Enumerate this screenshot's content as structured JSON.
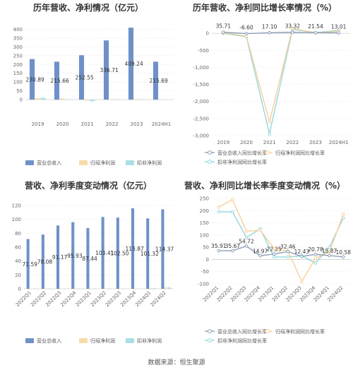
{
  "source": "数据来源：恒生聚源",
  "chart_data": [
    {
      "id": "annual-revenue",
      "type": "bar",
      "title": "历年营收、净利情况（亿元）",
      "categories": [
        "2019",
        "2020",
        "2021",
        "2022",
        "2023",
        "2024H1"
      ],
      "series": [
        {
          "name": "营业总收入",
          "color": "#6f91c7",
          "values": [
            230.89,
            215.66,
            252.55,
            336.71,
            409.24,
            215.69
          ]
        },
        {
          "name": "归母净利润",
          "color": "#f8dba9",
          "values": [
            8,
            7,
            -5,
            3,
            3,
            2
          ]
        },
        {
          "name": "扣非净利润",
          "color": "#a9dfe4",
          "values": [
            10,
            -1,
            -9,
            2,
            2,
            1
          ]
        }
      ],
      "data_labels": [
        "230.89",
        "215.66",
        "252.55",
        "336.71",
        "409.24",
        "215.69"
      ],
      "yticks": [
        "0",
        "50",
        "100",
        "150",
        "200",
        "250",
        "300",
        "350",
        "400"
      ],
      "ylim": [
        -100,
        430
      ]
    },
    {
      "id": "annual-growth",
      "type": "line",
      "title": "历年营收、净利同比增长率情况（%）",
      "categories": [
        "2019",
        "2020",
        "2021",
        "2022",
        "2023",
        "2024H1"
      ],
      "series": [
        {
          "name": "营业总收入同比增长率",
          "color": "#8a9fb8",
          "values": [
            35.71,
            -6.6,
            17.1,
            33.32,
            21.54,
            13.01
          ]
        },
        {
          "name": "归母净利润同比增长率",
          "color": "#f8cf9a",
          "values": [
            20,
            -80,
            -2600,
            150,
            10,
            60
          ]
        },
        {
          "name": "扣非净利润同比增长率",
          "color": "#93d7dc",
          "values": [
            0,
            -100,
            -2950,
            120,
            20,
            90
          ]
        }
      ],
      "data_labels": [
        "35.71",
        "-6.60",
        "17.10",
        "33.32",
        "21.54",
        "13.01"
      ],
      "yticks": [
        "0",
        "-500",
        "-1,000",
        "-1,500",
        "-2,000",
        "-2,500",
        "-3,000"
      ],
      "ylim": [
        -3000,
        150
      ]
    },
    {
      "id": "quarterly-revenue",
      "type": "bar",
      "title": "营收、净利季度变动情况（亿元）",
      "categories": [
        "2022Q1",
        "2022Q2",
        "2022Q3",
        "2022Q4",
        "2023Q1",
        "2023Q2",
        "2023Q3",
        "2023Q4",
        "2024Q1",
        "2024Q2"
      ],
      "series": [
        {
          "name": "营业总收入",
          "color": "#6f91c7",
          "values": [
            71.59,
            78.08,
            91.17,
            95.93,
            87.44,
            103.41,
            102.5,
            115.87,
            101.32,
            114.37
          ]
        },
        {
          "name": "归母净利润",
          "color": "#f8dba9",
          "values": [
            0.5,
            0.5,
            0.5,
            0.5,
            0.5,
            0.5,
            0.5,
            0.5,
            1,
            2
          ]
        },
        {
          "name": "扣非净利润",
          "color": "#a9dfe4",
          "values": [
            0.3,
            0.3,
            0.3,
            0.3,
            0.3,
            0.3,
            0.3,
            0.3,
            1,
            2
          ]
        }
      ],
      "data_labels": [
        "71.59",
        "78.08",
        "91.17",
        "95.93",
        "87.44",
        "103.41",
        "102.50",
        "115.87",
        "101.32",
        "114.37"
      ],
      "yticks": [
        "0",
        "20",
        "40",
        "60",
        "80",
        "100",
        "120"
      ],
      "ylim": [
        0,
        125
      ]
    },
    {
      "id": "quarterly-growth",
      "type": "line",
      "title": "营收、净利同比增长率季度变动情况（%）",
      "categories": [
        "2022Q1",
        "2022Q2",
        "2022Q3",
        "2022Q4",
        "2023Q1",
        "2023Q2",
        "2023Q3",
        "2023Q4",
        "2024Q1",
        "2024Q2"
      ],
      "series": [
        {
          "name": "营业总收入同比增长率",
          "color": "#8a9fb8",
          "values": [
            35.91,
            35.67,
            54.72,
            14.97,
            22.25,
            32.46,
            12.43,
            20.78,
            15.87,
            10.58
          ]
        },
        {
          "name": "归母净利润同比增长率",
          "color": "#f8cf9a",
          "values": [
            215,
            245,
            115,
            120,
            45,
            35,
            -90,
            5,
            30,
            185
          ]
        },
        {
          "name": "扣非净利润同比增长率",
          "color": "#93d7dc",
          "values": [
            195,
            195,
            90,
            125,
            10,
            10,
            15,
            -15,
            50,
            170
          ]
        }
      ],
      "data_labels": [
        "35.91",
        "35.67",
        "54.72",
        "14.97",
        "22.25",
        "32.46",
        "12.43",
        "20.78",
        "15.87",
        "10.58"
      ],
      "yticks": [
        "250",
        "200",
        "150",
        "100",
        "50",
        "0",
        "-50",
        "-100"
      ],
      "ylim": [
        -100,
        250
      ]
    }
  ]
}
